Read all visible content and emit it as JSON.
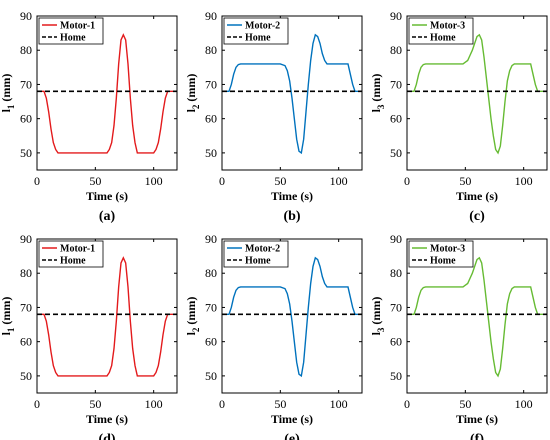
{
  "figure": {
    "background": "#ffffff",
    "home_color": "#000000"
  },
  "chart_data": [
    {
      "type": "line",
      "caption": "(a)",
      "xlabel": "Time (s)",
      "ylabel": "l",
      "ylabel_sub": "1",
      "ylabel_unit": "(mm)",
      "xlim": [
        0,
        120
      ],
      "ylim": [
        45,
        90
      ],
      "xticks": [
        0,
        50,
        100
      ],
      "yticks": [
        50,
        60,
        70,
        80,
        90
      ],
      "grid": false,
      "legend_position": "top-left",
      "series": [
        {
          "name": "Motor-1",
          "color": "#e31a1c",
          "style": "solid",
          "x": [
            0,
            6,
            8,
            10,
            12,
            14,
            16,
            18,
            60,
            62,
            64,
            66,
            68,
            70,
            72,
            74,
            76,
            78,
            80,
            82,
            84,
            86,
            100,
            102,
            104,
            106,
            108,
            110,
            112,
            120
          ],
          "y": [
            68,
            68,
            66,
            62,
            57,
            53,
            51,
            50,
            50,
            51,
            53,
            58,
            66,
            76,
            83,
            84.5,
            83,
            76,
            66,
            58,
            53,
            50,
            50,
            51,
            53,
            57,
            62,
            66,
            68,
            68
          ]
        },
        {
          "name": "Home",
          "color": "#000000",
          "style": "dashed",
          "x": [
            0,
            120
          ],
          "y": [
            68,
            68
          ]
        }
      ]
    },
    {
      "type": "line",
      "caption": "(b)",
      "xlabel": "Time (s)",
      "ylabel": "l",
      "ylabel_sub": "2",
      "ylabel_unit": "(mm)",
      "xlim": [
        0,
        120
      ],
      "ylim": [
        45,
        90
      ],
      "xticks": [
        0,
        50,
        100
      ],
      "yticks": [
        50,
        60,
        70,
        80,
        90
      ],
      "grid": false,
      "legend_position": "top-left",
      "series": [
        {
          "name": "Motor-2",
          "color": "#0072bd",
          "style": "solid",
          "x": [
            0,
            6,
            8,
            10,
            12,
            14,
            16,
            50,
            54,
            56,
            58,
            60,
            62,
            64,
            66,
            68,
            70,
            72,
            74,
            76,
            78,
            80,
            82,
            84,
            86,
            88,
            90,
            92,
            94,
            108,
            110,
            112,
            114,
            120
          ],
          "y": [
            68,
            68,
            70,
            73,
            75,
            75.8,
            76,
            76,
            75.5,
            74,
            71,
            66,
            60,
            54,
            50.5,
            50,
            54,
            62,
            70,
            77,
            82,
            84.5,
            84,
            82,
            79,
            77,
            76,
            76,
            76,
            76,
            73,
            70,
            68,
            68
          ]
        },
        {
          "name": "Home",
          "color": "#000000",
          "style": "dashed",
          "x": [
            0,
            120
          ],
          "y": [
            68,
            68
          ]
        }
      ]
    },
    {
      "type": "line",
      "caption": "(c)",
      "xlabel": "Time (s)",
      "ylabel": "l",
      "ylabel_sub": "3",
      "ylabel_unit": "(mm)",
      "xlim": [
        0,
        120
      ],
      "ylim": [
        45,
        90
      ],
      "xticks": [
        0,
        50,
        100
      ],
      "yticks": [
        50,
        60,
        70,
        80,
        90
      ],
      "grid": false,
      "legend_position": "top-left",
      "series": [
        {
          "name": "Motor-3",
          "color": "#66bb33",
          "style": "solid",
          "x": [
            0,
            6,
            8,
            10,
            12,
            14,
            16,
            44,
            46,
            48,
            50,
            52,
            54,
            56,
            58,
            60,
            62,
            64,
            66,
            68,
            70,
            72,
            74,
            76,
            78,
            80,
            82,
            84,
            86,
            88,
            90,
            92,
            94,
            106,
            108,
            110,
            112,
            120
          ],
          "y": [
            68,
            68,
            70,
            73,
            75,
            75.8,
            76,
            76,
            76,
            76,
            76.5,
            77,
            78.5,
            80,
            82,
            84,
            84.5,
            83,
            78,
            72,
            66,
            60,
            55,
            51,
            50,
            52,
            58,
            65,
            71,
            74,
            75.5,
            76,
            76,
            76,
            73,
            70,
            68,
            68
          ]
        },
        {
          "name": "Home",
          "color": "#000000",
          "style": "dashed",
          "x": [
            0,
            120
          ],
          "y": [
            68,
            68
          ]
        }
      ]
    },
    {
      "type": "line",
      "caption": "(d)",
      "xlabel": "Time (s)",
      "ylabel": "l",
      "ylabel_sub": "1",
      "ylabel_unit": "(mm)",
      "xlim": [
        0,
        120
      ],
      "ylim": [
        45,
        90
      ],
      "xticks": [
        0,
        50,
        100
      ],
      "yticks": [
        50,
        60,
        70,
        80,
        90
      ],
      "grid": false,
      "legend_position": "top-left",
      "series": [
        {
          "name": "Motor-1",
          "color": "#e31a1c",
          "style": "solid",
          "x": [
            0,
            6,
            8,
            10,
            12,
            14,
            16,
            18,
            60,
            62,
            64,
            66,
            68,
            70,
            72,
            74,
            76,
            78,
            80,
            82,
            84,
            86,
            100,
            102,
            104,
            106,
            108,
            110,
            112,
            120
          ],
          "y": [
            68,
            68,
            66,
            62,
            57,
            53,
            51,
            50,
            50,
            51,
            53,
            58,
            66,
            76,
            83,
            84.5,
            83,
            76,
            66,
            58,
            53,
            50,
            50,
            51,
            53,
            57,
            62,
            66,
            68,
            68
          ]
        },
        {
          "name": "Home",
          "color": "#000000",
          "style": "dashed",
          "x": [
            0,
            120
          ],
          "y": [
            68,
            68
          ]
        }
      ]
    },
    {
      "type": "line",
      "caption": "(e)",
      "xlabel": "Time (s)",
      "ylabel": "l",
      "ylabel_sub": "2",
      "ylabel_unit": "(mm)",
      "xlim": [
        0,
        120
      ],
      "ylim": [
        45,
        90
      ],
      "xticks": [
        0,
        50,
        100
      ],
      "yticks": [
        50,
        60,
        70,
        80,
        90
      ],
      "grid": false,
      "legend_position": "top-left",
      "series": [
        {
          "name": "Motor-2",
          "color": "#0072bd",
          "style": "solid",
          "x": [
            0,
            6,
            8,
            10,
            12,
            14,
            16,
            50,
            54,
            56,
            58,
            60,
            62,
            64,
            66,
            68,
            70,
            72,
            74,
            76,
            78,
            80,
            82,
            84,
            86,
            88,
            90,
            92,
            94,
            108,
            110,
            112,
            114,
            120
          ],
          "y": [
            68,
            68,
            70,
            73,
            75,
            75.8,
            76,
            76,
            75.5,
            74,
            71,
            66,
            60,
            54,
            50.5,
            50,
            54,
            62,
            70,
            77,
            82,
            84.5,
            84,
            82,
            79,
            77,
            76,
            76,
            76,
            76,
            73,
            70,
            68,
            68
          ]
        },
        {
          "name": "Home",
          "color": "#000000",
          "style": "dashed",
          "x": [
            0,
            120
          ],
          "y": [
            68,
            68
          ]
        }
      ]
    },
    {
      "type": "line",
      "caption": "(f)",
      "xlabel": "Time (s)",
      "ylabel": "l",
      "ylabel_sub": "3",
      "ylabel_unit": "(mm)",
      "xlim": [
        0,
        120
      ],
      "ylim": [
        45,
        90
      ],
      "xticks": [
        0,
        50,
        100
      ],
      "yticks": [
        50,
        60,
        70,
        80,
        90
      ],
      "grid": false,
      "legend_position": "top-left",
      "series": [
        {
          "name": "Motor-3",
          "color": "#66bb33",
          "style": "solid",
          "x": [
            0,
            6,
            8,
            10,
            12,
            14,
            16,
            44,
            46,
            48,
            50,
            52,
            54,
            56,
            58,
            60,
            62,
            64,
            66,
            68,
            70,
            72,
            74,
            76,
            78,
            80,
            82,
            84,
            86,
            88,
            90,
            92,
            94,
            106,
            108,
            110,
            112,
            120
          ],
          "y": [
            68,
            68,
            70,
            73,
            75,
            75.8,
            76,
            76,
            76,
            76,
            76.5,
            77,
            78.5,
            80,
            82,
            84,
            84.5,
            83,
            78,
            72,
            66,
            60,
            55,
            51,
            50,
            52,
            58,
            65,
            71,
            74,
            75.5,
            76,
            76,
            76,
            73,
            70,
            68,
            68
          ]
        },
        {
          "name": "Home",
          "color": "#000000",
          "style": "dashed",
          "x": [
            0,
            120
          ],
          "y": [
            68,
            68
          ]
        }
      ]
    }
  ]
}
